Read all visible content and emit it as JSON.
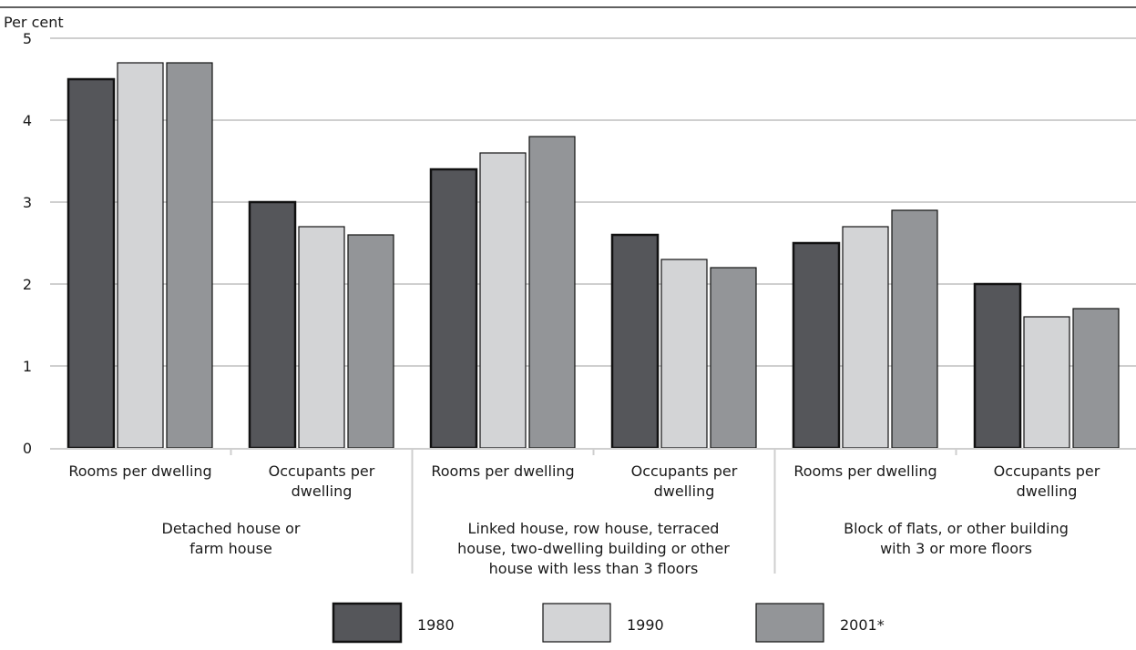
{
  "chart_data": {
    "type": "bar",
    "ylabel": "Per cent",
    "ylim": [
      0,
      5
    ],
    "yticks": [
      0,
      1,
      2,
      3,
      4,
      5
    ],
    "grid": true,
    "legend_position": "bottom",
    "groups": [
      {
        "label_lines": [
          "Detached house or",
          "farm house"
        ],
        "categories": [
          {
            "label_lines": [
              "Rooms per dwelling"
            ]
          },
          {
            "label_lines": [
              "Occupants per",
              "dwelling"
            ]
          }
        ]
      },
      {
        "label_lines": [
          "Linked house, row house, terraced",
          "house, two-dwelling building or other",
          "house with less than 3 floors"
        ],
        "categories": [
          {
            "label_lines": [
              "Rooms per dwelling"
            ]
          },
          {
            "label_lines": [
              "Occupants per",
              "dwelling"
            ]
          }
        ]
      },
      {
        "label_lines": [
          "Block of flats, or other building",
          "with 3 or more floors"
        ],
        "categories": [
          {
            "label_lines": [
              "Rooms per dwelling"
            ]
          },
          {
            "label_lines": [
              "Occupants per",
              "dwelling"
            ]
          }
        ]
      }
    ],
    "series": [
      {
        "name": "1980",
        "color": "#55565a",
        "values": [
          4.5,
          3.0,
          3.4,
          2.6,
          2.5,
          2.0
        ]
      },
      {
        "name": "1990",
        "color": "#d3d4d6",
        "values": [
          4.7,
          2.7,
          3.6,
          2.3,
          2.7,
          1.6
        ]
      },
      {
        "name": "2001*",
        "color": "#939598",
        "values": [
          4.7,
          2.6,
          3.8,
          2.2,
          2.9,
          1.7
        ]
      }
    ]
  }
}
